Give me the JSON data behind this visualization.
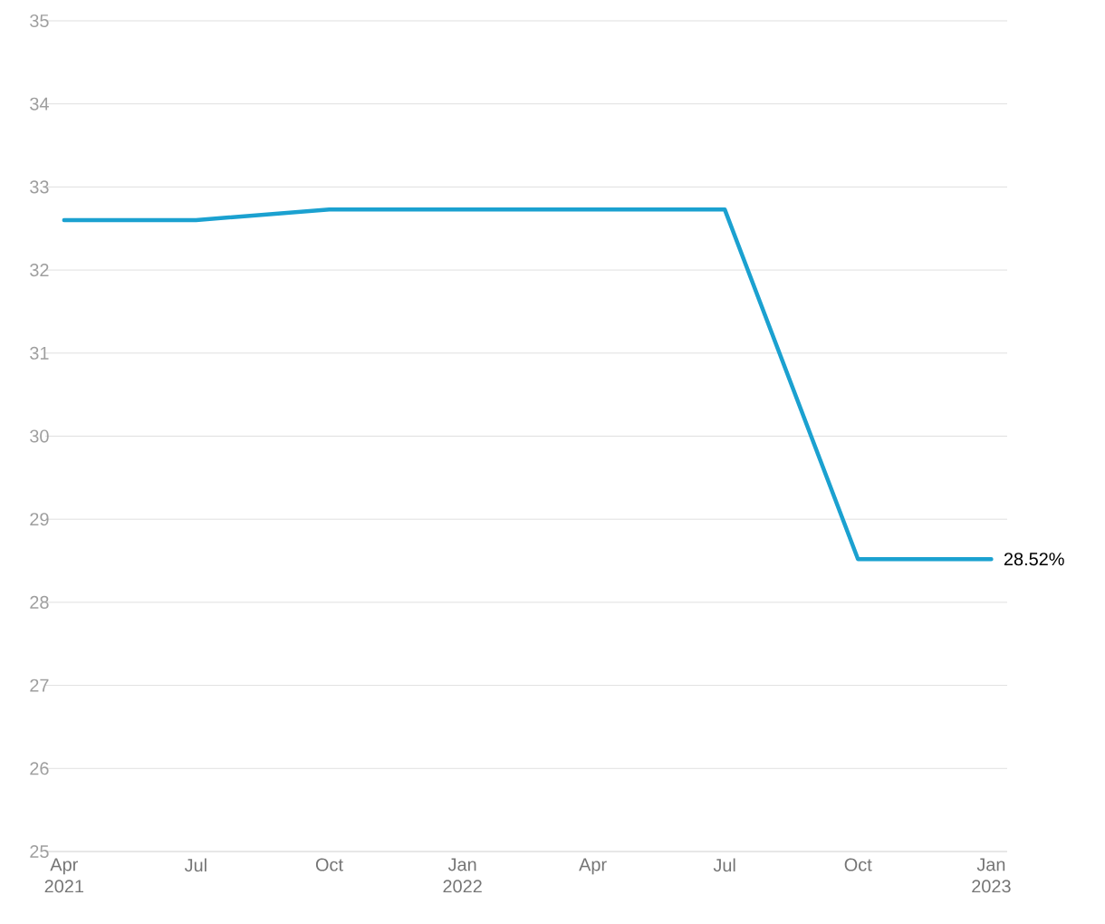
{
  "chart_data": {
    "type": "line",
    "x": [
      "2021-04-01",
      "2021-07-01",
      "2021-10-01",
      "2022-01-01",
      "2022-04-01",
      "2022-07-01",
      "2022-10-01",
      "2023-01-01"
    ],
    "series": [
      {
        "color": "#1ba1d0",
        "values": [
          32.6,
          32.6,
          32.73,
          32.73,
          32.73,
          32.73,
          28.52,
          28.52
        ]
      }
    ],
    "xlim": [
      "2021-03-19",
      "2023-01-12"
    ],
    "xticks": [
      {
        "value": "2021-04-01",
        "label": "Apr 2021"
      },
      {
        "value": "2021-07-01",
        "label": "Jul"
      },
      {
        "value": "2021-10-01",
        "label": "Oct"
      },
      {
        "value": "2022-01-01",
        "label": "Jan 2022"
      },
      {
        "value": "2022-04-01",
        "label": "Apr"
      },
      {
        "value": "2022-07-01",
        "label": "Jul"
      },
      {
        "value": "2022-10-01",
        "label": "Oct"
      },
      {
        "value": "2023-01-01",
        "label": "Jan 2023"
      }
    ],
    "ylim": [
      25,
      35
    ],
    "yticks": [
      25,
      26,
      27,
      28,
      29,
      30,
      31,
      32,
      33,
      34,
      35
    ],
    "grid": "y",
    "marker": "none",
    "line_style": "solid",
    "annotations": [
      {
        "text": "28.52%",
        "x": "2023-01-01",
        "y": 28.52
      }
    ]
  }
}
